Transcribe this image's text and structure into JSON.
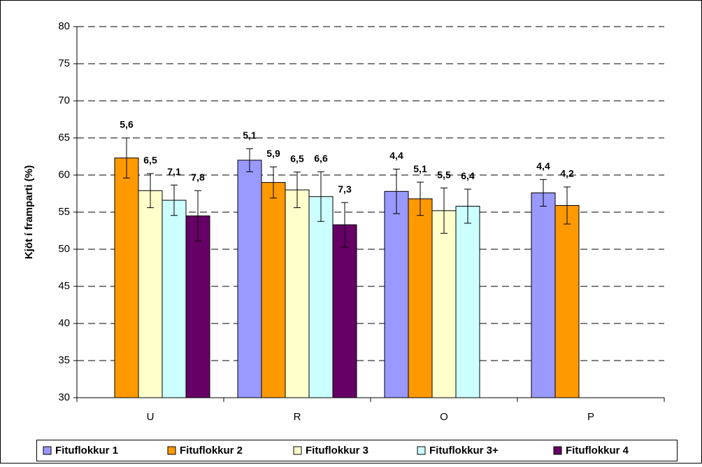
{
  "chart_data": {
    "type": "bar",
    "y_label": "Kjöt í framparti (%)",
    "categories": [
      "U",
      "R",
      "O",
      "P"
    ],
    "ylim": [
      30,
      80
    ],
    "yticks": [
      30,
      35,
      40,
      45,
      50,
      55,
      60,
      65,
      70,
      75,
      80
    ],
    "grid": true,
    "series": [
      {
        "name": "Fituflokkur 1",
        "color": "#9999ff",
        "values": [
          null,
          62.0,
          57.8,
          57.6
        ],
        "errors": [
          null,
          1.55,
          3.0,
          1.8
        ],
        "point_labels": [
          null,
          "5,1",
          "4,4",
          "4,4"
        ]
      },
      {
        "name": "Fituflokkur 2",
        "color": "#ff9900",
        "values": [
          62.3,
          59.0,
          56.8,
          55.9
        ],
        "errors": [
          2.7,
          2.1,
          2.25,
          2.5
        ],
        "point_labels": [
          "5,6",
          "5,9",
          "5,1",
          "4,2"
        ]
      },
      {
        "name": "Fituflokkur 3",
        "color": "#ffffcc",
        "values": [
          57.9,
          58.0,
          55.2,
          null
        ],
        "errors": [
          2.3,
          2.4,
          3.05,
          null
        ],
        "point_labels": [
          "6,5",
          "6,5",
          "5,5",
          null
        ]
      },
      {
        "name": "Fituflokkur 3+",
        "color": "#ccffff",
        "values": [
          56.6,
          57.1,
          55.8,
          null
        ],
        "errors": [
          2.05,
          3.35,
          2.3,
          null
        ],
        "point_labels": [
          "7,1",
          "6,6",
          "6,4",
          null
        ]
      },
      {
        "name": "Fituflokkur 4",
        "color": "#660066",
        "values": [
          54.5,
          53.3,
          null,
          null
        ],
        "errors": [
          3.4,
          3.0,
          null,
          null
        ],
        "point_labels": [
          "7,8",
          "7,3",
          null,
          null
        ]
      }
    ]
  }
}
